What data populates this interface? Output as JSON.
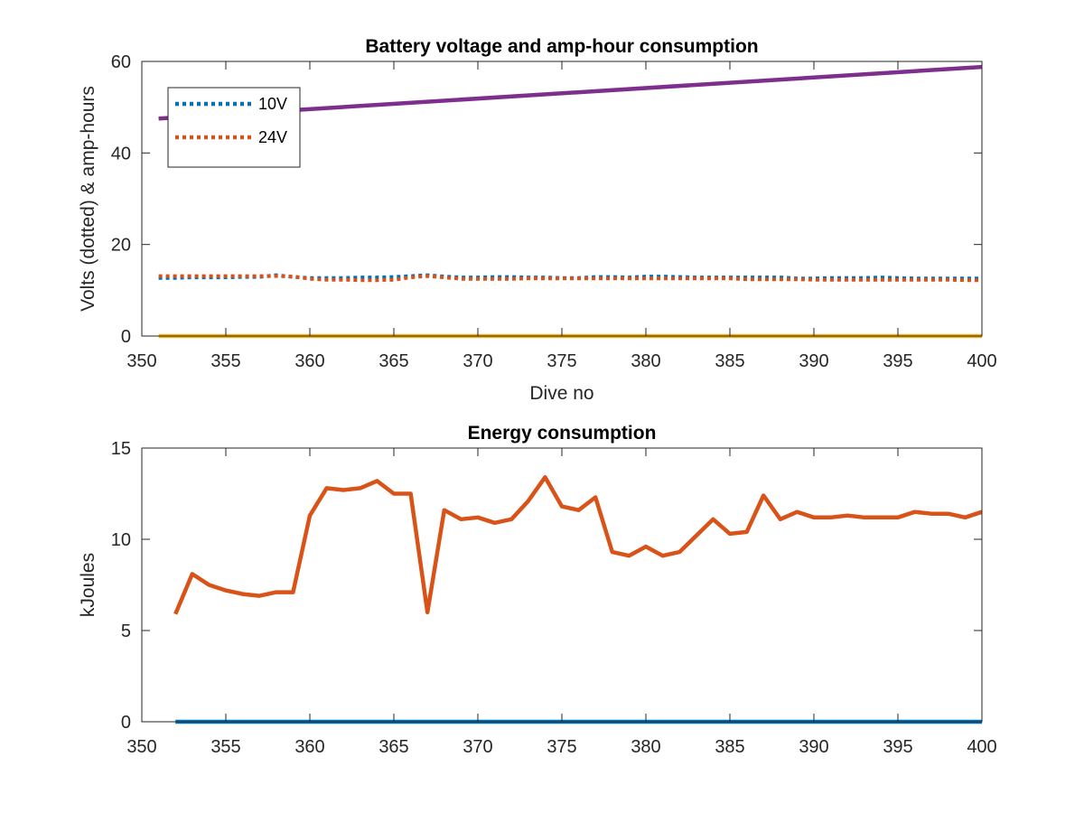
{
  "chart_data": [
    {
      "type": "line",
      "title": "Battery voltage and amp-hour consumption",
      "xlabel": "Dive no",
      "ylabel": "Volts (dotted) & amp-hours",
      "xlim": [
        350,
        400
      ],
      "ylim": [
        0,
        60
      ],
      "xticks": [
        350,
        355,
        360,
        365,
        370,
        375,
        380,
        385,
        390,
        395,
        400
      ],
      "yticks": [
        0,
        20,
        40,
        60
      ],
      "grid": false,
      "legend_position": "top-left",
      "series": [
        {
          "name": "10V",
          "style": "dotted",
          "color": "#0072bd",
          "x": [
            351,
            352,
            353,
            354,
            355,
            356,
            357,
            358,
            359,
            360,
            361,
            362,
            363,
            364,
            365,
            366,
            367,
            368,
            369,
            370,
            371,
            372,
            373,
            374,
            375,
            376,
            377,
            378,
            379,
            380,
            381,
            382,
            383,
            384,
            385,
            386,
            387,
            388,
            389,
            390,
            391,
            392,
            393,
            394,
            395,
            396,
            397,
            398,
            399,
            400
          ],
          "values": [
            12.7,
            12.7,
            12.8,
            12.8,
            12.8,
            12.9,
            12.9,
            13.3,
            12.9,
            12.7,
            12.7,
            12.7,
            12.8,
            12.8,
            12.9,
            13.1,
            13.3,
            13.0,
            12.8,
            12.8,
            12.9,
            12.9,
            12.8,
            12.8,
            12.7,
            12.7,
            12.9,
            12.9,
            12.8,
            13.0,
            13.0,
            12.9,
            12.8,
            12.8,
            12.8,
            12.8,
            12.8,
            12.8,
            12.6,
            12.6,
            12.7,
            12.7,
            12.7,
            12.8,
            12.7,
            12.6,
            12.6,
            12.6,
            12.6,
            12.6
          ]
        },
        {
          "name": "24V",
          "style": "dotted",
          "color": "#d95319",
          "x": [
            351,
            352,
            353,
            354,
            355,
            356,
            357,
            358,
            359,
            360,
            361,
            362,
            363,
            364,
            365,
            366,
            367,
            368,
            369,
            370,
            371,
            372,
            373,
            374,
            375,
            376,
            377,
            378,
            379,
            380,
            381,
            382,
            383,
            384,
            385,
            386,
            387,
            388,
            389,
            390,
            391,
            392,
            393,
            394,
            395,
            396,
            397,
            398,
            399,
            400
          ],
          "values": [
            13.1,
            13.1,
            13.1,
            13.1,
            13.1,
            13.1,
            13.1,
            13.1,
            13.0,
            12.5,
            12.3,
            12.3,
            12.2,
            12.2,
            12.3,
            12.8,
            13.1,
            12.8,
            12.5,
            12.5,
            12.5,
            12.5,
            12.6,
            12.6,
            12.6,
            12.6,
            12.6,
            12.6,
            12.6,
            12.6,
            12.6,
            12.6,
            12.6,
            12.6,
            12.6,
            12.4,
            12.4,
            12.4,
            12.4,
            12.3,
            12.3,
            12.3,
            12.3,
            12.3,
            12.3,
            12.3,
            12.3,
            12.3,
            12.2,
            12.2
          ]
        },
        {
          "style": "solid",
          "color": "#7e2f8e",
          "x": [
            351,
            400
          ],
          "values": [
            47.5,
            58.8
          ]
        },
        {
          "style": "solid",
          "color": "#edb120",
          "x": [
            351,
            400
          ],
          "values": [
            0,
            0
          ]
        }
      ]
    },
    {
      "type": "line",
      "title": "Energy consumption",
      "xlabel": "",
      "ylabel": "kJoules",
      "xlim": [
        350,
        400
      ],
      "ylim": [
        0,
        15
      ],
      "xticks": [
        350,
        355,
        360,
        365,
        370,
        375,
        380,
        385,
        390,
        395,
        400
      ],
      "yticks": [
        0,
        5,
        10,
        15
      ],
      "grid": false,
      "series": [
        {
          "style": "solid",
          "color": "#d95319",
          "x": [
            352,
            353,
            354,
            355,
            356,
            357,
            358,
            359,
            360,
            361,
            362,
            363,
            364,
            365,
            366,
            367,
            368,
            369,
            370,
            371,
            372,
            373,
            374,
            375,
            376,
            377,
            378,
            379,
            380,
            381,
            382,
            383,
            384,
            385,
            386,
            387,
            388,
            389,
            390,
            391,
            392,
            393,
            394,
            395,
            396,
            397,
            398,
            399,
            400
          ],
          "values": [
            5.9,
            8.1,
            7.5,
            7.2,
            7.0,
            6.9,
            7.1,
            7.1,
            11.3,
            12.8,
            12.7,
            12.8,
            13.2,
            12.5,
            12.5,
            6.0,
            11.6,
            11.1,
            11.2,
            10.9,
            11.1,
            12.1,
            13.4,
            11.8,
            11.6,
            12.3,
            9.3,
            9.1,
            9.6,
            9.1,
            9.3,
            10.2,
            11.1,
            10.3,
            10.4,
            12.4,
            11.1,
            11.5,
            11.2,
            11.2,
            11.3,
            11.2,
            11.2,
            11.2,
            11.5,
            11.4,
            11.4,
            11.2,
            11.5
          ]
        },
        {
          "style": "solid",
          "color": "#0072bd",
          "x": [
            352,
            400
          ],
          "values": [
            0,
            0
          ]
        }
      ]
    }
  ]
}
